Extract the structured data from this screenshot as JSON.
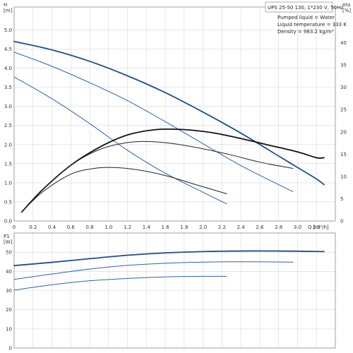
{
  "chart_data": [
    {
      "type": "line",
      "info_box": {
        "title": "UPS 25-50 130, 1*230 V, 50Hz",
        "lines": [
          "Pumped liquid = Water",
          "Liquid temperature = 333 K",
          "Density = 983.2 kg/m³"
        ]
      },
      "xlabel": "Q [m³/h]",
      "ylabel": "H\n[m]",
      "y2label": "eta\n[%]",
      "xlim": [
        0,
        3.4
      ],
      "ylim": [
        0,
        5.6
      ],
      "y2lim": [
        0,
        48
      ],
      "x_ticks": [
        "0",
        "0.2",
        "0.4",
        "0.6",
        "0.8",
        "1.0",
        "1.2",
        "1.4",
        "1.6",
        "1.8",
        "2.0",
        "2.2",
        "2.4",
        "2.6",
        "2.8",
        "3.0",
        "3.2"
      ],
      "y_ticks": [
        "0.0",
        "0.5",
        "1.0",
        "1.5",
        "2.0",
        "2.5",
        "3.0",
        "3.5",
        "4.0",
        "4.5",
        "5.0"
      ],
      "y2_ticks": [
        "0",
        "5",
        "10",
        "15",
        "20",
        "25",
        "30",
        "35",
        "40"
      ],
      "grid": true,
      "series": [
        {
          "kind": "head",
          "color": "#1f4e8c",
          "width": 1.8,
          "x": [
            0,
            0.4,
            0.8,
            1.2,
            1.6,
            2.0,
            2.4,
            2.8,
            3.0,
            3.2,
            3.28
          ],
          "y": [
            4.7,
            4.48,
            4.18,
            3.8,
            3.36,
            2.85,
            2.3,
            1.7,
            1.4,
            1.1,
            0.95
          ]
        },
        {
          "kind": "head",
          "color": "#2f62a8",
          "width": 1.0,
          "x": [
            0,
            0.4,
            0.8,
            1.2,
            1.6,
            2.0,
            2.4,
            2.8,
            2.95
          ],
          "y": [
            4.42,
            4.05,
            3.62,
            3.15,
            2.6,
            2.02,
            1.45,
            0.95,
            0.77
          ]
        },
        {
          "kind": "head",
          "color": "#2f62a8",
          "width": 1.0,
          "x": [
            0,
            0.4,
            0.8,
            1.2,
            1.6,
            2.0,
            2.25
          ],
          "y": [
            3.77,
            3.2,
            2.55,
            1.85,
            1.25,
            0.75,
            0.45
          ]
        },
        {
          "kind": "eta",
          "color": "#111111",
          "width": 1.8,
          "x": [
            0.08,
            0.3,
            0.6,
            0.9,
            1.2,
            1.5,
            1.8,
            2.1,
            2.4,
            2.7,
            3.0,
            3.2,
            3.28
          ],
          "y": [
            2,
            7,
            12.5,
            16.5,
            19.3,
            20.5,
            20.5,
            19.8,
            18.5,
            17,
            15.5,
            14.2,
            14.2
          ]
        },
        {
          "kind": "eta",
          "color": "#222222",
          "width": 1.0,
          "x": [
            0.08,
            0.3,
            0.6,
            0.9,
            1.2,
            1.45,
            1.7,
            2.0,
            2.3,
            2.6,
            2.95
          ],
          "y": [
            2,
            7,
            12.5,
            16,
            17.6,
            17.8,
            17.3,
            16.2,
            14.8,
            13.2,
            11.8
          ]
        },
        {
          "kind": "eta",
          "color": "#222222",
          "width": 1.0,
          "x": [
            0.08,
            0.3,
            0.6,
            0.85,
            1.05,
            1.3,
            1.6,
            1.9,
            2.25
          ],
          "y": [
            2,
            6.5,
            10.5,
            11.8,
            12,
            11.5,
            10.2,
            8.3,
            6.1
          ]
        }
      ]
    },
    {
      "type": "line",
      "ylabel": "P1\n[W]",
      "xlim": [
        0,
        3.4
      ],
      "ylim": [
        0,
        60
      ],
      "y_ticks": [
        "0",
        "10",
        "20",
        "30",
        "40",
        "50"
      ],
      "grid": true,
      "series": [
        {
          "color": "#1f4e8c",
          "width": 1.8,
          "x": [
            0,
            0.4,
            0.8,
            1.2,
            1.6,
            2.0,
            2.4,
            2.8,
            3.28
          ],
          "y": [
            43,
            44.7,
            46.6,
            48.4,
            49.6,
            50.3,
            50.6,
            50.6,
            50.3
          ]
        },
        {
          "color": "#2f62a8",
          "width": 1.0,
          "x": [
            0,
            0.4,
            0.8,
            1.2,
            1.6,
            2.0,
            2.4,
            2.95
          ],
          "y": [
            35.8,
            38.6,
            41.2,
            43.1,
            44.2,
            44.8,
            45,
            44.8
          ]
        },
        {
          "color": "#2f62a8",
          "width": 1.0,
          "x": [
            0,
            0.4,
            0.8,
            1.2,
            1.6,
            2.0,
            2.25
          ],
          "y": [
            30.2,
            33,
            35.1,
            36.3,
            37.1,
            37.4,
            37.4
          ]
        }
      ]
    }
  ]
}
